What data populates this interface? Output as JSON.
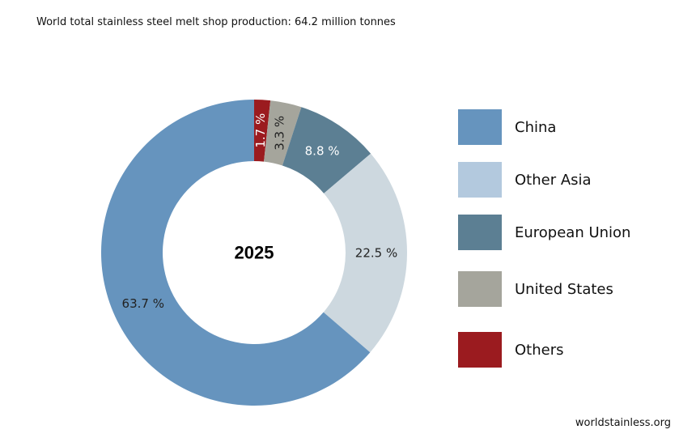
{
  "chart_data": {
    "type": "pie",
    "donut": true,
    "title": "World total stainless steel melt shop production: 64.2 million tonnes",
    "center_label": "2025",
    "source": "worldstainless.org",
    "legend_placement": "right",
    "slices": [
      {
        "name": "Others",
        "value": 1.7,
        "label": "1.7 %",
        "color": "#9b1b1f",
        "legend_color": "#9b1b1f",
        "label_color": "#ffffff"
      },
      {
        "name": "United States",
        "value": 3.3,
        "label": "3.3 %",
        "color": "#a5a59c",
        "legend_color": "#a5a59c",
        "label_color": "#222222"
      },
      {
        "name": "European Union",
        "value": 8.8,
        "label": "8.8 %",
        "color": "#5c7f93",
        "legend_color": "#5c7f93",
        "label_color": "#ffffff"
      },
      {
        "name": "Other Asia",
        "value": 22.5,
        "label": "22.5 %",
        "color": "#cdd8df",
        "legend_color": "#b3c9de",
        "label_color": "#222222"
      },
      {
        "name": "China",
        "value": 63.7,
        "label": "63.7 %",
        "color": "#6694be",
        "legend_color": "#6694be",
        "label_color": "#222222"
      }
    ],
    "legend_order": [
      "China",
      "Other Asia",
      "European Union",
      "United States",
      "Others"
    ]
  }
}
